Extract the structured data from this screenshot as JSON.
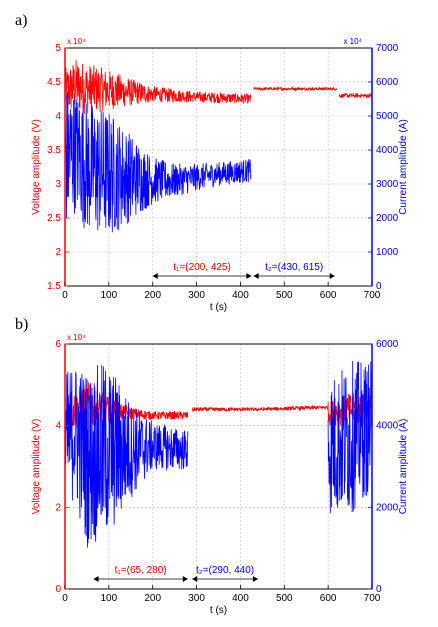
{
  "panels": [
    {
      "label": "a)"
    },
    {
      "label": "b)"
    }
  ],
  "chart_data": [
    {
      "type": "line",
      "xlabel": "t (s)",
      "ylabel_left": "Voltage amplitude (V)",
      "ylabel_right": "Current amplitude (A)",
      "xlim": [
        0,
        700
      ],
      "ylim_left": [
        1.5,
        5
      ],
      "ylim_right": [
        0,
        7000
      ],
      "left_scale_label": "x 10⁴",
      "right_scale_label": "x 10⁴",
      "x_ticks": [
        "0",
        "100",
        "200",
        "300",
        "400",
        "500",
        "600",
        "700"
      ],
      "left_ticks": [
        "1.5",
        "2",
        "2.5",
        "3",
        "3.5",
        "4",
        "4.5",
        "5"
      ],
      "right_ticks": [
        "0",
        "1000",
        "2000",
        "3000",
        "4000",
        "5000",
        "6000",
        "7000"
      ],
      "colors": {
        "voltage": "#ff0000",
        "current": "#0000ff"
      },
      "series": [
        {
          "name": "Voltage amplitude (V)",
          "axis": "left",
          "color": "#ff0000",
          "segments": [
            {
              "x": [
                0,
                25,
                50,
                100,
                150,
                200,
                250,
                300,
                350,
                425
              ],
              "center": [
                4.35,
                4.45,
                4.4,
                4.38,
                4.35,
                4.32,
                4.3,
                4.28,
                4.27,
                4.25
              ],
              "amp": [
                0.35,
                0.4,
                0.38,
                0.3,
                0.2,
                0.12,
                0.1,
                0.08,
                0.08,
                0.07
              ]
            },
            {
              "x": [
                430,
                620
              ],
              "center": [
                4.4,
                4.4
              ],
              "amp": [
                0.02,
                0.02
              ]
            },
            {
              "x": [
                625,
                700
              ],
              "center": [
                4.3,
                4.3
              ],
              "amp": [
                0.03,
                0.03
              ]
            }
          ]
        },
        {
          "name": "Current amplitude (A)",
          "axis": "right",
          "color": "#0000ff",
          "segments": [
            {
              "x": [
                0,
                25,
                50,
                100,
                150,
                200,
                250,
                300,
                350,
                425
              ],
              "center": [
                3800,
                4000,
                3500,
                3300,
                3200,
                3100,
                3100,
                3200,
                3300,
                3400
              ],
              "amp": [
                2200,
                1800,
                2000,
                1900,
                1300,
                700,
                500,
                400,
                350,
                350
              ]
            },
            {
              "x": [
                430,
                700
              ],
              "center": [
                0,
                0
              ],
              "amp": [
                0,
                0
              ]
            }
          ]
        }
      ],
      "annotations": [
        {
          "text": "t₁=(200, 425)",
          "x_from": 200,
          "x_to": 425,
          "color": "#ff0000"
        },
        {
          "text": "t₂=(430, 615)",
          "x_from": 430,
          "x_to": 615,
          "color": "#0000ff"
        }
      ],
      "grid": true
    },
    {
      "type": "line",
      "xlabel": "t (s)",
      "ylabel_left": "Voltage amplitude (V)",
      "ylabel_right": "Current amplitude (A)",
      "xlim": [
        0,
        700
      ],
      "ylim_left": [
        0,
        6
      ],
      "ylim_right": [
        0,
        6000
      ],
      "left_scale_label": "x 10⁴",
      "x_ticks": [
        "0",
        "100",
        "200",
        "300",
        "400",
        "500",
        "600",
        "700"
      ],
      "left_ticks": [
        "0",
        "2",
        "4",
        "6"
      ],
      "right_ticks": [
        "0",
        "2000",
        "4000",
        "6000"
      ],
      "series": [
        {
          "name": "Voltage amplitude (V)",
          "axis": "left",
          "color": "#ff0000",
          "segments": [
            {
              "x": [
                0,
                20,
                50,
                100,
                150,
                200,
                280
              ],
              "center": [
                4.2,
                4.4,
                4.5,
                4.4,
                4.3,
                4.25,
                4.25
              ],
              "amp": [
                0.4,
                0.5,
                0.6,
                0.3,
                0.15,
                0.1,
                0.1
              ]
            },
            {
              "x": [
                290,
                440,
                600
              ],
              "center": [
                4.4,
                4.4,
                4.45
              ],
              "amp": [
                0.05,
                0.04,
                0.05
              ]
            },
            {
              "x": [
                600,
                650,
                700
              ],
              "center": [
                4.3,
                4.4,
                4.4
              ],
              "amp": [
                0.3,
                0.4,
                0.4
              ]
            }
          ]
        },
        {
          "name": "Current amplitude (A)",
          "axis": "right",
          "color": "#0000ff",
          "segments": [
            {
              "x": [
                0,
                20,
                50,
                100,
                150,
                200,
                280
              ],
              "center": [
                3500,
                3900,
                3200,
                3400,
                3400,
                3500,
                3400
              ],
              "amp": [
                1800,
                1700,
                2200,
                2200,
                1200,
                600,
                500
              ]
            },
            {
              "x": [
                290,
                590
              ],
              "center": [
                0,
                0
              ],
              "amp": [
                0,
                0
              ]
            },
            {
              "x": [
                600,
                650,
                700
              ],
              "center": [
                3500,
                3700,
                4000
              ],
              "amp": [
                1700,
                1900,
                1600
              ]
            }
          ]
        }
      ],
      "annotations": [
        {
          "text": "t₁=(65, 280)",
          "x_from": 65,
          "x_to": 280,
          "color": "#ff0000"
        },
        {
          "text": "t₂=(290, 440)",
          "x_from": 290,
          "x_to": 440,
          "color": "#0000ff"
        }
      ],
      "grid": true
    }
  ]
}
